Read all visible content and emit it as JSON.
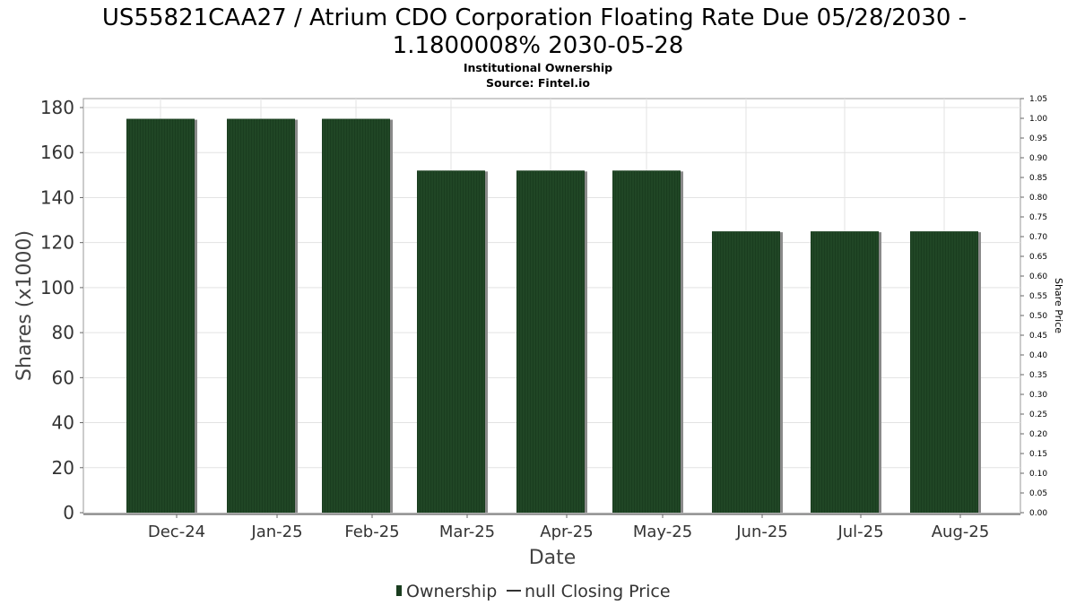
{
  "chart_data": {
    "type": "bar",
    "title_line1": "US55821CAA27 / Atrium CDO Corporation Floating Rate Due 05/28/2030 -",
    "title_line2": "1.1800008% 2030-05-28",
    "subtitle_line1": "Institutional Ownership",
    "subtitle_line2": "Source: Fintel.io",
    "xlabel": "Date",
    "ylabel": "Shares (x1000)",
    "y2label": "Share Price",
    "categories": [
      "Dec-24",
      "Jan-25",
      "Feb-25",
      "Mar-25",
      "Apr-25",
      "May-25",
      "Jun-25",
      "Jul-25",
      "Aug-25"
    ],
    "series": [
      {
        "name": "Ownership",
        "values": [
          175,
          175,
          175,
          152,
          152,
          152,
          125,
          125,
          125
        ],
        "color": "#1a3d1f"
      }
    ],
    "ylim": [
      0,
      180
    ],
    "yticks": [
      "0",
      "20",
      "40",
      "60",
      "80",
      "100",
      "120",
      "140",
      "160",
      "180"
    ],
    "y2lim": [
      0,
      1.05
    ],
    "y2ticks": [
      "0.00",
      "0.05",
      "0.10",
      "0.15",
      "0.20",
      "0.25",
      "0.30",
      "0.35",
      "0.40",
      "0.45",
      "0.50",
      "0.55",
      "0.60",
      "0.65",
      "0.70",
      "0.75",
      "0.80",
      "0.85",
      "0.90",
      "0.95",
      "1.00",
      "1.05"
    ],
    "legend": [
      "Ownership",
      "null Closing Price"
    ],
    "legend_position": "bottom",
    "grid": true
  }
}
